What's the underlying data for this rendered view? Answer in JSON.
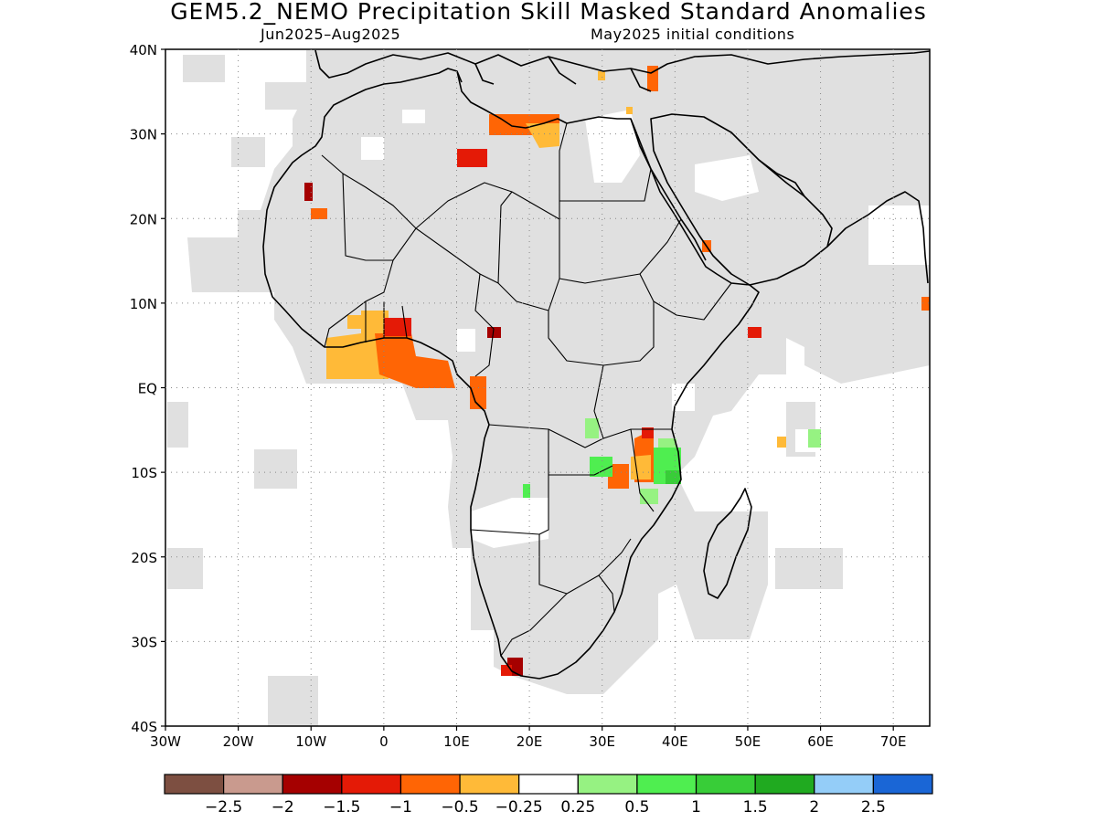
{
  "header": {
    "title": "GEM5.2_NEMO Precipitation Skill Masked Standard Anomalies",
    "period": "Jun2025–Aug2025",
    "init": "May2025 initial conditions"
  },
  "axes": {
    "lon_ticks": [
      {
        "value": -30,
        "label": "30W"
      },
      {
        "value": -20,
        "label": "20W"
      },
      {
        "value": -10,
        "label": "10W"
      },
      {
        "value": 0,
        "label": "0"
      },
      {
        "value": 10,
        "label": "10E"
      },
      {
        "value": 20,
        "label": "20E"
      },
      {
        "value": 30,
        "label": "30E"
      },
      {
        "value": 40,
        "label": "40E"
      },
      {
        "value": 50,
        "label": "50E"
      },
      {
        "value": 60,
        "label": "60E"
      },
      {
        "value": 70,
        "label": "70E"
      }
    ],
    "lat_ticks": [
      {
        "value": 40,
        "label": "40N"
      },
      {
        "value": 30,
        "label": "30N"
      },
      {
        "value": 20,
        "label": "20N"
      },
      {
        "value": 10,
        "label": "10N"
      },
      {
        "value": 0,
        "label": "EQ"
      },
      {
        "value": -10,
        "label": "10S"
      },
      {
        "value": -20,
        "label": "20S"
      },
      {
        "value": -30,
        "label": "30S"
      },
      {
        "value": -40,
        "label": "40S"
      }
    ],
    "lon_range": [
      -30,
      75
    ],
    "lat_range": [
      -40,
      40
    ]
  },
  "colorbar": {
    "colors": [
      "#7d4f41",
      "#c99a8e",
      "#a50000",
      "#e41a06",
      "#ff6505",
      "#ffba38",
      "#ffffff",
      "#96f282",
      "#4fee50",
      "#38cd38",
      "#20aa20",
      "#94cdf8",
      "#1a66d6"
    ],
    "labels": [
      "−2.5",
      "−2",
      "−1.5",
      "−1",
      "−0.5",
      "−0.25",
      "0.25",
      "0.5",
      "1",
      "1.5",
      "2",
      "2.5"
    ]
  },
  "colors": {
    "mask": "#e0e0e0",
    "coast": "#000000"
  }
}
